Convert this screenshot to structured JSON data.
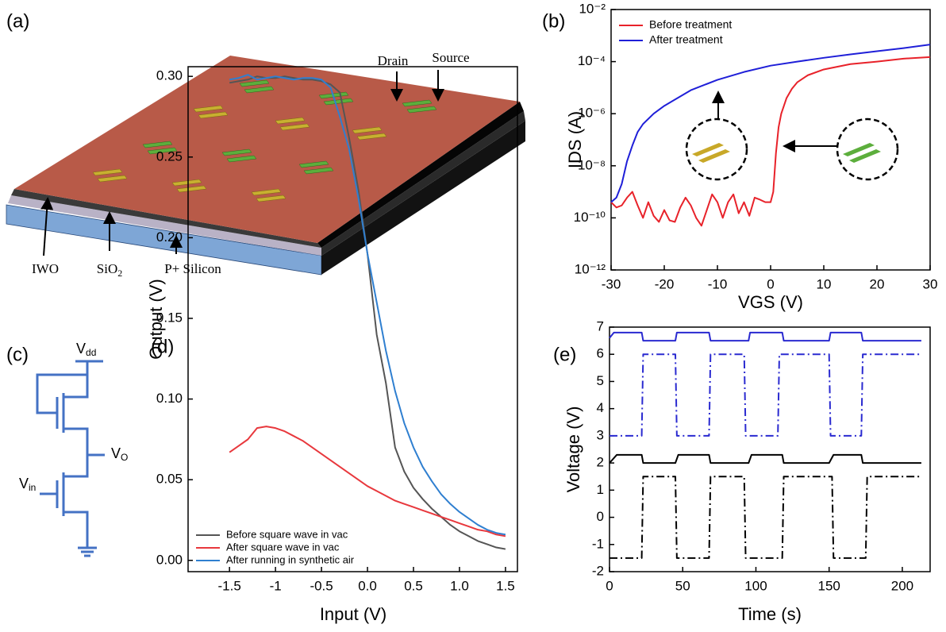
{
  "diagram": {
    "panel": "(a)",
    "drain": "Drain",
    "source": "Source",
    "iwo": "IWO",
    "sio2": {
      "base": "SiO",
      "sub": "2"
    },
    "p_silicon": "P+ Silicon"
  },
  "circuit": {
    "panel": "(c)",
    "vdd": {
      "base": "V",
      "sub": "dd"
    },
    "vo": {
      "base": "V",
      "sub": "O"
    },
    "vin": {
      "base": "V",
      "sub": "in"
    }
  },
  "chart_data": [
    {
      "type": "line",
      "panel": "(b)",
      "x_label": "VGS (V)",
      "y_label": "IDS (A)",
      "log_y": true,
      "legend": "upper left",
      "xlim": [
        -30,
        30
      ],
      "xticks": [
        -30,
        -20,
        -10,
        0,
        10,
        20,
        30
      ],
      "ylim": [
        1e-12,
        0.01
      ],
      "yticks": [
        {
          "value": 1e-12,
          "label": "10⁻¹²"
        },
        {
          "value": 1e-10,
          "label": "10⁻¹⁰"
        },
        {
          "value": 1e-08,
          "label": "10⁻⁸"
        },
        {
          "value": 1e-06,
          "label": "10⁻⁶"
        },
        {
          "value": 0.0001,
          "label": "10⁻⁴"
        },
        {
          "value": 0.01,
          "label": "10⁻²"
        }
      ],
      "series": [
        {
          "name": "Before treatment",
          "color": "#e8222a",
          "x": [
            -30,
            -29,
            -28,
            -27,
            -26,
            -25,
            -24,
            -23,
            -22,
            -21,
            -20,
            -19,
            -18,
            -17,
            -16,
            -15,
            -14,
            -13,
            -12,
            -11,
            -10,
            -9,
            -8,
            -7,
            -6,
            -5,
            -4,
            -3,
            -2,
            -1,
            0,
            0.5,
            1,
            1.5,
            2,
            3,
            4,
            5,
            7,
            10,
            15,
            20,
            25,
            30
          ],
          "values": [
            4e-10,
            2.5e-10,
            3e-10,
            6e-10,
            1e-09,
            3e-10,
            1e-10,
            4e-10,
            1.2e-10,
            7e-11,
            2e-10,
            8e-11,
            7e-11,
            2.5e-10,
            6e-10,
            3e-10,
            1e-10,
            5e-11,
            2e-10,
            8e-10,
            4e-10,
            1e-10,
            4e-10,
            8e-10,
            1.5e-10,
            4e-10,
            1.2e-10,
            6e-10,
            5e-10,
            4e-10,
            4e-10,
            1e-09,
            3e-08,
            3e-07,
            1e-06,
            4e-06,
            9e-06,
            1.6e-05,
            3e-05,
            5e-05,
            8e-05,
            0.0001,
            0.00013,
            0.00015
          ]
        },
        {
          "name": "After treatment",
          "color": "#1f1fd8",
          "x": [
            -30,
            -29,
            -28,
            -27,
            -26,
            -25,
            -24,
            -22,
            -20,
            -15,
            -10,
            -5,
            0,
            5,
            10,
            15,
            20,
            25,
            30
          ],
          "values": [
            4e-10,
            6e-10,
            2e-09,
            1.5e-08,
            6e-08,
            2e-07,
            4e-07,
            1e-06,
            2e-06,
            8e-06,
            2e-05,
            4e-05,
            7e-05,
            0.0001,
            0.00014,
            0.00019,
            0.00025,
            0.00033,
            0.00045
          ]
        }
      ]
    },
    {
      "type": "line",
      "panel": "(d)",
      "x_label": "Input (V)",
      "y_label": "Output (V)",
      "legend": "lower left",
      "xlim": [
        -1.95,
        1.63
      ],
      "xticks": [
        -1.5,
        -1.0,
        {
          "value": -0.5,
          "label": "-0.5"
        },
        {
          "value": 0,
          "label": "0.0"
        },
        0.5,
        {
          "value": 1,
          "label": "1.0"
        },
        1.5
      ],
      "ylim": [
        -0.007,
        0.306
      ],
      "yticks": [
        {
          "value": 0,
          "label": "0.00"
        },
        0.05,
        {
          "value": 0.1,
          "label": "0.10"
        },
        0.15,
        {
          "value": 0.2,
          "label": "0.20"
        },
        0.25,
        {
          "value": 0.3,
          "label": "0.30"
        }
      ],
      "x": [
        -1.5,
        -1.4,
        -1.3,
        -1.2,
        -1.1,
        -1.0,
        -0.9,
        -0.8,
        -0.7,
        -0.6,
        -0.5,
        -0.4,
        -0.3,
        -0.2,
        -0.1,
        0,
        0.1,
        0.2,
        0.3,
        0.4,
        0.5,
        0.6,
        0.7,
        0.8,
        0.9,
        1.0,
        1.1,
        1.2,
        1.3,
        1.4,
        1.5
      ],
      "series": [
        {
          "name": "Before square wave in vac",
          "color": "#555555",
          "values": [
            0.296,
            0.297,
            0.298,
            0.3,
            0.299,
            0.299,
            0.3,
            0.299,
            0.298,
            0.298,
            0.297,
            0.295,
            0.29,
            0.262,
            0.23,
            0.19,
            0.14,
            0.11,
            0.07,
            0.055,
            0.045,
            0.038,
            0.032,
            0.027,
            0.022,
            0.018,
            0.015,
            0.012,
            0.01,
            0.008,
            0.007
          ]
        },
        {
          "name": "After square wave in vac",
          "color": "#e8383d",
          "values": [
            0.067,
            0.071,
            0.075,
            0.082,
            0.083,
            0.082,
            0.08,
            0.077,
            0.074,
            0.07,
            0.066,
            0.062,
            0.058,
            0.054,
            0.05,
            0.046,
            0.043,
            0.04,
            0.037,
            0.035,
            0.033,
            0.031,
            0.029,
            0.027,
            0.025,
            0.023,
            0.021,
            0.019,
            0.018,
            0.016,
            0.015
          ]
        },
        {
          "name": "After running in synthetic air",
          "color": "#2f7fd0",
          "values": [
            0.298,
            0.299,
            0.301,
            0.298,
            0.299,
            0.3,
            0.299,
            0.298,
            0.299,
            0.299,
            0.298,
            0.293,
            0.275,
            0.255,
            0.225,
            0.19,
            0.16,
            0.13,
            0.105,
            0.085,
            0.07,
            0.058,
            0.049,
            0.041,
            0.035,
            0.03,
            0.026,
            0.022,
            0.019,
            0.017,
            0.016
          ]
        }
      ]
    },
    {
      "type": "line",
      "panel": "(e)",
      "x_label": "Time (s)",
      "y_label": "Voltage (V)",
      "xlim": [
        0,
        219
      ],
      "xticks": [
        0,
        50,
        100,
        150,
        200
      ],
      "ylim": [
        -2,
        7
      ],
      "yticks": [
        -2,
        -1,
        0,
        1,
        2,
        3,
        4,
        5,
        6,
        7
      ],
      "series": [
        {
          "color": "#2a2ad0",
          "dash": "solid",
          "x": [
            0,
            3,
            22,
            23,
            45,
            46,
            68,
            69,
            95,
            96,
            118,
            119,
            150,
            151,
            172,
            173,
            213
          ],
          "values": [
            6.6,
            6.8,
            6.8,
            6.5,
            6.5,
            6.8,
            6.8,
            6.5,
            6.5,
            6.8,
            6.8,
            6.5,
            6.5,
            6.8,
            6.8,
            6.5,
            6.5
          ]
        },
        {
          "color": "#2a2ad0",
          "dash": "dashdot",
          "x": [
            0,
            22,
            23,
            45,
            46,
            68,
            69,
            92,
            93,
            115,
            116,
            150,
            151,
            172,
            173,
            213
          ],
          "values": [
            3,
            3,
            6,
            6,
            3,
            3,
            6,
            6,
            3,
            3,
            6,
            6,
            3,
            3,
            6,
            6
          ]
        },
        {
          "color": "#000000",
          "dash": "solid",
          "x": [
            0,
            5,
            22,
            23,
            45,
            47,
            68,
            69,
            95,
            97,
            118,
            119,
            150,
            153,
            172,
            173,
            213
          ],
          "values": [
            2.0,
            2.3,
            2.3,
            2.0,
            2.0,
            2.3,
            2.3,
            2.0,
            2.0,
            2.3,
            2.3,
            2.0,
            2.0,
            2.3,
            2.3,
            2.0,
            2.0
          ]
        },
        {
          "color": "#000000",
          "dash": "dashdot",
          "x": [
            0,
            22,
            23,
            45,
            46,
            68,
            69,
            92,
            93,
            118,
            119,
            152,
            153,
            175,
            176,
            213
          ],
          "values": [
            -1.5,
            -1.5,
            1.5,
            1.5,
            -1.5,
            -1.5,
            1.5,
            1.5,
            -1.5,
            -1.5,
            1.5,
            1.5,
            -1.5,
            -1.5,
            1.5,
            1.5
          ]
        }
      ]
    }
  ]
}
